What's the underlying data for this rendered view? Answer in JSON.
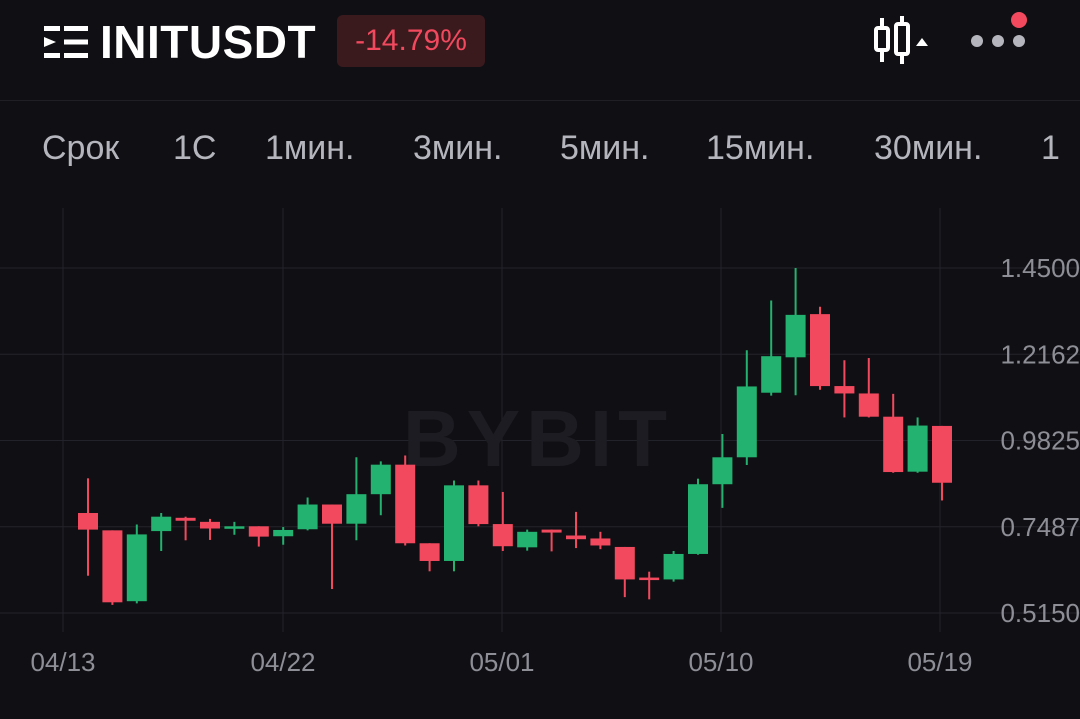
{
  "header": {
    "symbol": "INITUSDT",
    "change_percent": "-14.79%",
    "menu_icon": "list-menu-icon",
    "candle_icon": "candlestick-chart-icon",
    "more_icon": "more-dots-icon",
    "notification_dot": true
  },
  "tabs": [
    {
      "label": "Срок"
    },
    {
      "label": "1С"
    },
    {
      "label": "1мин."
    },
    {
      "label": "3мин."
    },
    {
      "label": "5мин."
    },
    {
      "label": "15мин."
    },
    {
      "label": "30мин."
    },
    {
      "label": "1"
    }
  ],
  "colors": {
    "up": "#23b26f",
    "down": "#f2495e",
    "background": "#101014",
    "grid": "#22222a",
    "axis_text": "#8d8e96"
  },
  "watermark": "BYBIT",
  "chart_data": {
    "type": "candlestick",
    "x_labels": [
      "04/13",
      "04/22",
      "05/01",
      "05/10",
      "05/19"
    ],
    "y_ticks": [
      "1.4500",
      "1.2162",
      "0.9825",
      "0.7487",
      "0.5150"
    ],
    "ylim": [
      0.515,
      1.45
    ],
    "grid": true,
    "interval": "1D",
    "candles": [
      {
        "date": "04/14",
        "open": 0.786,
        "high": 0.88,
        "low": 0.616,
        "close": 0.741
      },
      {
        "date": "04/15",
        "open": 0.739,
        "high": 0.739,
        "low": 0.537,
        "close": 0.544
      },
      {
        "date": "04/16",
        "open": 0.547,
        "high": 0.755,
        "low": 0.541,
        "close": 0.728
      },
      {
        "date": "04/17",
        "open": 0.737,
        "high": 0.786,
        "low": 0.683,
        "close": 0.776
      },
      {
        "date": "04/18",
        "open": 0.773,
        "high": 0.776,
        "low": 0.712,
        "close": 0.765
      },
      {
        "date": "04/19",
        "open": 0.762,
        "high": 0.77,
        "low": 0.713,
        "close": 0.744
      },
      {
        "date": "04/20",
        "open": 0.744,
        "high": 0.762,
        "low": 0.727,
        "close": 0.75
      },
      {
        "date": "04/21",
        "open": 0.75,
        "high": 0.75,
        "low": 0.695,
        "close": 0.722
      },
      {
        "date": "04/22",
        "open": 0.723,
        "high": 0.748,
        "low": 0.7,
        "close": 0.74
      },
      {
        "date": "04/23",
        "open": 0.742,
        "high": 0.828,
        "low": 0.739,
        "close": 0.809
      },
      {
        "date": "04/24",
        "open": 0.809,
        "high": 0.809,
        "low": 0.58,
        "close": 0.757
      },
      {
        "date": "04/25",
        "open": 0.757,
        "high": 0.937,
        "low": 0.712,
        "close": 0.837
      },
      {
        "date": "04/26",
        "open": 0.837,
        "high": 0.926,
        "low": 0.78,
        "close": 0.917
      },
      {
        "date": "04/27",
        "open": 0.917,
        "high": 0.942,
        "low": 0.698,
        "close": 0.704
      },
      {
        "date": "04/28",
        "open": 0.704,
        "high": 0.704,
        "low": 0.628,
        "close": 0.656
      },
      {
        "date": "04/29",
        "open": 0.656,
        "high": 0.874,
        "low": 0.628,
        "close": 0.861
      },
      {
        "date": "04/30",
        "open": 0.861,
        "high": 0.874,
        "low": 0.75,
        "close": 0.756
      },
      {
        "date": "05/01",
        "open": 0.756,
        "high": 0.843,
        "low": 0.683,
        "close": 0.696
      },
      {
        "date": "05/02",
        "open": 0.693,
        "high": 0.741,
        "low": 0.684,
        "close": 0.735
      },
      {
        "date": "05/03",
        "open": 0.741,
        "high": 0.741,
        "low": 0.682,
        "close": 0.733
      },
      {
        "date": "05/04",
        "open": 0.725,
        "high": 0.789,
        "low": 0.691,
        "close": 0.715
      },
      {
        "date": "05/05",
        "open": 0.717,
        "high": 0.735,
        "low": 0.688,
        "close": 0.698
      },
      {
        "date": "05/06",
        "open": 0.694,
        "high": 0.694,
        "low": 0.558,
        "close": 0.606
      },
      {
        "date": "05/07",
        "open": 0.611,
        "high": 0.627,
        "low": 0.552,
        "close": 0.606
      },
      {
        "date": "05/08",
        "open": 0.606,
        "high": 0.683,
        "low": 0.6,
        "close": 0.675
      },
      {
        "date": "05/09",
        "open": 0.675,
        "high": 0.879,
        "low": 0.673,
        "close": 0.864
      },
      {
        "date": "05/10",
        "open": 0.864,
        "high": 1.0,
        "low": 0.8,
        "close": 0.937
      },
      {
        "date": "05/11",
        "open": 0.937,
        "high": 1.227,
        "low": 0.916,
        "close": 1.129
      },
      {
        "date": "05/12",
        "open": 1.112,
        "high": 1.362,
        "low": 1.104,
        "close": 1.211
      },
      {
        "date": "05/13",
        "open": 1.208,
        "high": 1.45,
        "low": 1.105,
        "close": 1.323
      },
      {
        "date": "05/14",
        "open": 1.325,
        "high": 1.345,
        "low": 1.12,
        "close": 1.13
      },
      {
        "date": "05/15",
        "open": 1.13,
        "high": 1.2,
        "low": 1.045,
        "close": 1.11
      },
      {
        "date": "05/16",
        "open": 1.11,
        "high": 1.206,
        "low": 1.045,
        "close": 1.047
      },
      {
        "date": "05/17",
        "open": 1.047,
        "high": 1.109,
        "low": 0.895,
        "close": 0.897
      },
      {
        "date": "05/18",
        "open": 0.898,
        "high": 1.045,
        "low": 0.895,
        "close": 1.023
      },
      {
        "date": "05/19",
        "open": 1.022,
        "high": 1.022,
        "low": 0.82,
        "close": 0.868
      }
    ]
  }
}
